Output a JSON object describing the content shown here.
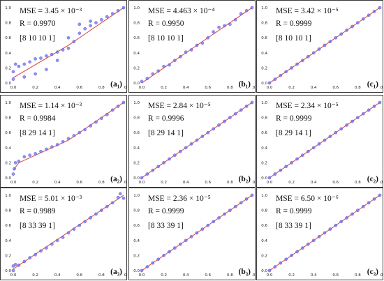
{
  "chart_data": [
    {
      "type": "scatter",
      "panel_id": "a1",
      "label": "(a₁)",
      "mse": "MSE = 3.45 × 10⁻³",
      "r": "R = 0.9970",
      "arch": "[8 10 10 1]",
      "xticks": [
        "0.0",
        "0.2",
        "0.4",
        "0.6",
        "0.8",
        "1.0"
      ],
      "yticks": [
        "0.0",
        "0.2",
        "0.4",
        "0.6",
        "0.8",
        "1.0"
      ],
      "xlim": [
        0,
        1
      ],
      "ylim": [
        0,
        1
      ],
      "fit_line": [
        [
          0.0,
          0.07
        ],
        [
          0.5,
          0.5
        ],
        [
          1.0,
          1.0
        ]
      ],
      "points": [
        [
          0.0,
          0.05
        ],
        [
          0.0,
          0.15
        ],
        [
          0.02,
          0.25
        ],
        [
          0.05,
          0.22
        ],
        [
          0.1,
          0.25
        ],
        [
          0.15,
          0.28
        ],
        [
          0.2,
          0.32
        ],
        [
          0.25,
          0.33
        ],
        [
          0.3,
          0.36
        ],
        [
          0.35,
          0.38
        ],
        [
          0.4,
          0.41
        ],
        [
          0.45,
          0.44
        ],
        [
          0.5,
          0.46
        ],
        [
          0.55,
          0.55
        ],
        [
          0.6,
          0.66
        ],
        [
          0.65,
          0.72
        ],
        [
          0.7,
          0.76
        ],
        [
          0.75,
          0.8
        ],
        [
          0.8,
          0.84
        ],
        [
          0.85,
          0.88
        ],
        [
          0.9,
          0.92
        ],
        [
          0.95,
          0.96
        ],
        [
          1.0,
          1.0
        ],
        [
          0.1,
          0.08
        ],
        [
          0.2,
          0.12
        ],
        [
          0.3,
          0.18
        ],
        [
          0.4,
          0.3
        ],
        [
          0.5,
          0.6
        ],
        [
          0.6,
          0.78
        ],
        [
          0.7,
          0.82
        ]
      ]
    },
    {
      "type": "scatter",
      "panel_id": "b1",
      "label": "(b₁)",
      "mse": "MSE = 4.463 × 10⁻⁴",
      "r": "R = 0.9950",
      "arch": "[8 10 10 1]",
      "xticks": [
        "0.0",
        "0.2",
        "0.4",
        "0.6",
        "0.8",
        "1.0"
      ],
      "yticks": [
        "0.0",
        "0.2",
        "0.4",
        "0.6",
        "0.8",
        "1.0"
      ],
      "xlim": [
        0,
        1
      ],
      "ylim": [
        0,
        1
      ],
      "fit_line": [
        [
          0.0,
          0.0
        ],
        [
          1.0,
          1.0
        ]
      ],
      "points": [
        [
          0.0,
          0.02
        ],
        [
          0.05,
          0.06
        ],
        [
          0.1,
          0.12
        ],
        [
          0.15,
          0.16
        ],
        [
          0.2,
          0.22
        ],
        [
          0.25,
          0.24
        ],
        [
          0.3,
          0.3
        ],
        [
          0.35,
          0.35
        ],
        [
          0.4,
          0.41
        ],
        [
          0.45,
          0.44
        ],
        [
          0.5,
          0.5
        ],
        [
          0.55,
          0.53
        ],
        [
          0.6,
          0.6
        ],
        [
          0.65,
          0.68
        ],
        [
          0.7,
          0.74
        ],
        [
          0.75,
          0.76
        ],
        [
          0.8,
          0.78
        ],
        [
          0.85,
          0.84
        ],
        [
          0.9,
          0.92
        ],
        [
          0.95,
          0.96
        ],
        [
          1.0,
          1.0
        ]
      ]
    },
    {
      "type": "scatter",
      "panel_id": "c1",
      "label": "(c₁)",
      "mse": "MSE = 3.42 × 10⁻⁵",
      "r": "R = 0.9999",
      "arch": "[8 10 10 1]",
      "xticks": [
        "0.0",
        "0.2",
        "0.4",
        "0.6",
        "0.8",
        "1.0"
      ],
      "yticks": [
        "0.0",
        "0.2",
        "0.4",
        "0.6",
        "0.8",
        "1.0"
      ],
      "xlim": [
        0,
        1
      ],
      "ylim": [
        0,
        1
      ],
      "fit_line": [
        [
          0.0,
          0.0
        ],
        [
          1.0,
          1.0
        ]
      ],
      "points": [
        [
          0.0,
          0.0
        ],
        [
          0.05,
          0.05
        ],
        [
          0.1,
          0.1
        ],
        [
          0.15,
          0.15
        ],
        [
          0.2,
          0.2
        ],
        [
          0.25,
          0.25
        ],
        [
          0.3,
          0.3
        ],
        [
          0.35,
          0.35
        ],
        [
          0.4,
          0.4
        ],
        [
          0.45,
          0.45
        ],
        [
          0.5,
          0.5
        ],
        [
          0.55,
          0.55
        ],
        [
          0.6,
          0.6
        ],
        [
          0.65,
          0.65
        ],
        [
          0.7,
          0.7
        ],
        [
          0.75,
          0.75
        ],
        [
          0.8,
          0.8
        ],
        [
          0.85,
          0.85
        ],
        [
          0.9,
          0.9
        ],
        [
          0.95,
          0.95
        ],
        [
          1.0,
          1.0
        ]
      ]
    },
    {
      "type": "scatter",
      "panel_id": "a2",
      "label": "(a₂)",
      "mse": "MSE = 1.14 × 10⁻³",
      "r": "R = 0.9984",
      "arch": "[8 29 14 1]",
      "xticks": [
        "0.0",
        "0.2",
        "0.4",
        "0.6",
        "0.8",
        "1.0"
      ],
      "yticks": [
        "0.0",
        "0.2",
        "0.4",
        "0.6",
        "0.8",
        "1.0"
      ],
      "xlim": [
        0,
        1
      ],
      "ylim": [
        0,
        1
      ],
      "fit_line": [
        [
          0.0,
          0.1
        ],
        [
          0.05,
          0.2
        ],
        [
          0.5,
          0.5
        ],
        [
          1.0,
          1.0
        ]
      ],
      "points": [
        [
          0.0,
          0.05
        ],
        [
          0.01,
          0.12
        ],
        [
          0.02,
          0.2
        ],
        [
          0.05,
          0.22
        ],
        [
          0.1,
          0.28
        ],
        [
          0.15,
          0.3
        ],
        [
          0.2,
          0.32
        ],
        [
          0.25,
          0.35
        ],
        [
          0.3,
          0.38
        ],
        [
          0.35,
          0.41
        ],
        [
          0.4,
          0.44
        ],
        [
          0.45,
          0.48
        ],
        [
          0.5,
          0.52
        ],
        [
          0.55,
          0.56
        ],
        [
          0.6,
          0.6
        ],
        [
          0.65,
          0.64
        ],
        [
          0.7,
          0.69
        ],
        [
          0.75,
          0.74
        ],
        [
          0.8,
          0.79
        ],
        [
          0.85,
          0.84
        ],
        [
          0.9,
          0.9
        ],
        [
          0.95,
          0.95
        ],
        [
          1.0,
          1.0
        ]
      ]
    },
    {
      "type": "scatter",
      "panel_id": "b2",
      "label": "(b₂)",
      "mse": "MSE = 2.84 × 10⁻⁵",
      "r": "R = 0.9996",
      "arch": "[8 29 14 1]",
      "xticks": [
        "0.0",
        "0.2",
        "0.4",
        "0.6",
        "0.8",
        "1.0"
      ],
      "yticks": [
        "0.0",
        "0.2",
        "0.4",
        "0.6",
        "0.8",
        "1.0"
      ],
      "xlim": [
        0,
        1
      ],
      "ylim": [
        0,
        1
      ],
      "fit_line": [
        [
          0.0,
          0.0
        ],
        [
          1.0,
          1.0
        ]
      ],
      "points": [
        [
          0.0,
          0.0
        ],
        [
          0.05,
          0.05
        ],
        [
          0.1,
          0.1
        ],
        [
          0.15,
          0.15
        ],
        [
          0.2,
          0.2
        ],
        [
          0.25,
          0.25
        ],
        [
          0.3,
          0.3
        ],
        [
          0.35,
          0.35
        ],
        [
          0.4,
          0.4
        ],
        [
          0.45,
          0.45
        ],
        [
          0.5,
          0.5
        ],
        [
          0.55,
          0.55
        ],
        [
          0.6,
          0.6
        ],
        [
          0.65,
          0.65
        ],
        [
          0.7,
          0.7
        ],
        [
          0.75,
          0.75
        ],
        [
          0.8,
          0.8
        ],
        [
          0.85,
          0.85
        ],
        [
          0.9,
          0.9
        ],
        [
          0.95,
          0.95
        ],
        [
          1.0,
          1.0
        ]
      ]
    },
    {
      "type": "scatter",
      "panel_id": "c2",
      "label": "(c₂)",
      "mse": "MSE = 2.34 × 10⁻⁵",
      "r": "R = 0.9999",
      "arch": "[8 29 14 1]",
      "xticks": [
        "0.0",
        "0.2",
        "0.4",
        "0.6",
        "0.8",
        "1.0"
      ],
      "yticks": [
        "0.0",
        "0.2",
        "0.4",
        "0.6",
        "0.8",
        "1.0"
      ],
      "xlim": [
        0,
        1
      ],
      "ylim": [
        0,
        1
      ],
      "fit_line": [
        [
          0.0,
          0.0
        ],
        [
          1.0,
          1.0
        ]
      ],
      "points": [
        [
          0.0,
          0.0
        ],
        [
          0.05,
          0.05
        ],
        [
          0.1,
          0.1
        ],
        [
          0.15,
          0.15
        ],
        [
          0.2,
          0.2
        ],
        [
          0.25,
          0.25
        ],
        [
          0.3,
          0.3
        ],
        [
          0.35,
          0.35
        ],
        [
          0.4,
          0.4
        ],
        [
          0.45,
          0.45
        ],
        [
          0.5,
          0.5
        ],
        [
          0.55,
          0.55
        ],
        [
          0.6,
          0.6
        ],
        [
          0.65,
          0.65
        ],
        [
          0.7,
          0.7
        ],
        [
          0.75,
          0.75
        ],
        [
          0.8,
          0.8
        ],
        [
          0.85,
          0.85
        ],
        [
          0.9,
          0.9
        ],
        [
          0.95,
          0.95
        ],
        [
          1.0,
          1.0
        ]
      ]
    },
    {
      "type": "scatter",
      "panel_id": "a3",
      "label": "(a₃)",
      "mse": "MSE = 5.01 × 10⁻³",
      "r": "R = 0.9989",
      "arch": "[8 33 39 1]",
      "xticks": [
        "0.0",
        "0.2",
        "0.4",
        "0.6",
        "0.8",
        "1.0"
      ],
      "yticks": [
        "0.0",
        "0.2",
        "0.4",
        "0.6",
        "0.8",
        "1.0"
      ],
      "xlim": [
        0,
        1
      ],
      "ylim": [
        0,
        1
      ],
      "fit_line": [
        [
          0.0,
          0.02
        ],
        [
          1.0,
          1.0
        ]
      ],
      "points": [
        [
          0.0,
          0.0
        ],
        [
          0.0,
          0.06
        ],
        [
          0.02,
          0.08
        ],
        [
          0.05,
          0.07
        ],
        [
          0.1,
          0.12
        ],
        [
          0.15,
          0.17
        ],
        [
          0.2,
          0.21
        ],
        [
          0.25,
          0.26
        ],
        [
          0.3,
          0.3
        ],
        [
          0.35,
          0.35
        ],
        [
          0.4,
          0.4
        ],
        [
          0.45,
          0.44
        ],
        [
          0.5,
          0.5
        ],
        [
          0.55,
          0.55
        ],
        [
          0.6,
          0.6
        ],
        [
          0.65,
          0.65
        ],
        [
          0.7,
          0.7
        ],
        [
          0.75,
          0.75
        ],
        [
          0.8,
          0.8
        ],
        [
          0.85,
          0.85
        ],
        [
          0.9,
          0.9
        ],
        [
          0.95,
          0.97
        ],
        [
          0.97,
          1.02
        ],
        [
          1.0,
          0.96
        ]
      ]
    },
    {
      "type": "scatter",
      "panel_id": "b3",
      "label": "(b₃)",
      "mse": "MSE = 2.36 × 10⁻⁵",
      "r": "R = 0.9999",
      "arch": "[8 33 39 1]",
      "xticks": [
        "0.0",
        "0.2",
        "0.4",
        "0.6",
        "0.8",
        "1.0"
      ],
      "yticks": [
        "0.0",
        "0.2",
        "0.4",
        "0.6",
        "0.8",
        "1.0"
      ],
      "xlim": [
        0,
        1
      ],
      "ylim": [
        0,
        1
      ],
      "fit_line": [
        [
          0.0,
          0.0
        ],
        [
          1.0,
          1.0
        ]
      ],
      "points": [
        [
          0.0,
          0.0
        ],
        [
          0.05,
          0.05
        ],
        [
          0.1,
          0.1
        ],
        [
          0.15,
          0.15
        ],
        [
          0.2,
          0.2
        ],
        [
          0.25,
          0.25
        ],
        [
          0.3,
          0.3
        ],
        [
          0.35,
          0.35
        ],
        [
          0.4,
          0.4
        ],
        [
          0.45,
          0.45
        ],
        [
          0.5,
          0.5
        ],
        [
          0.55,
          0.55
        ],
        [
          0.6,
          0.6
        ],
        [
          0.65,
          0.65
        ],
        [
          0.7,
          0.7
        ],
        [
          0.75,
          0.75
        ],
        [
          0.8,
          0.8
        ],
        [
          0.85,
          0.85
        ],
        [
          0.9,
          0.9
        ],
        [
          0.95,
          0.95
        ],
        [
          1.0,
          1.0
        ]
      ]
    },
    {
      "type": "scatter",
      "panel_id": "c3",
      "label": "(c₃)",
      "mse": "MSE = 6.50 × 10⁻⁶",
      "r": "R = 0.9999",
      "arch": "[8 33 39 1]",
      "xticks": [
        "0.0",
        "0.2",
        "0.4",
        "0.6",
        "0.8",
        "1.0"
      ],
      "yticks": [
        "0.0",
        "0.2",
        "0.4",
        "0.6",
        "0.8",
        "1.0"
      ],
      "xlim": [
        0,
        1
      ],
      "ylim": [
        0,
        1
      ],
      "fit_line": [
        [
          0.0,
          0.0
        ],
        [
          1.0,
          1.0
        ]
      ],
      "points": [
        [
          0.0,
          0.0
        ],
        [
          0.05,
          0.05
        ],
        [
          0.1,
          0.1
        ],
        [
          0.15,
          0.15
        ],
        [
          0.2,
          0.2
        ],
        [
          0.25,
          0.25
        ],
        [
          0.3,
          0.3
        ],
        [
          0.35,
          0.35
        ],
        [
          0.4,
          0.4
        ],
        [
          0.45,
          0.45
        ],
        [
          0.5,
          0.5
        ],
        [
          0.55,
          0.55
        ],
        [
          0.6,
          0.6
        ],
        [
          0.65,
          0.65
        ],
        [
          0.7,
          0.7
        ],
        [
          0.75,
          0.75
        ],
        [
          0.8,
          0.8
        ],
        [
          0.85,
          0.85
        ],
        [
          0.9,
          0.9
        ],
        [
          0.95,
          0.95
        ],
        [
          1.0,
          1.0
        ]
      ]
    }
  ],
  "colors": {
    "points": "#6f6ff2",
    "points_edge": "#4a4ad6",
    "fit_line": "#d9534f",
    "axis": "#333333",
    "frame": "#3a3a3a"
  }
}
